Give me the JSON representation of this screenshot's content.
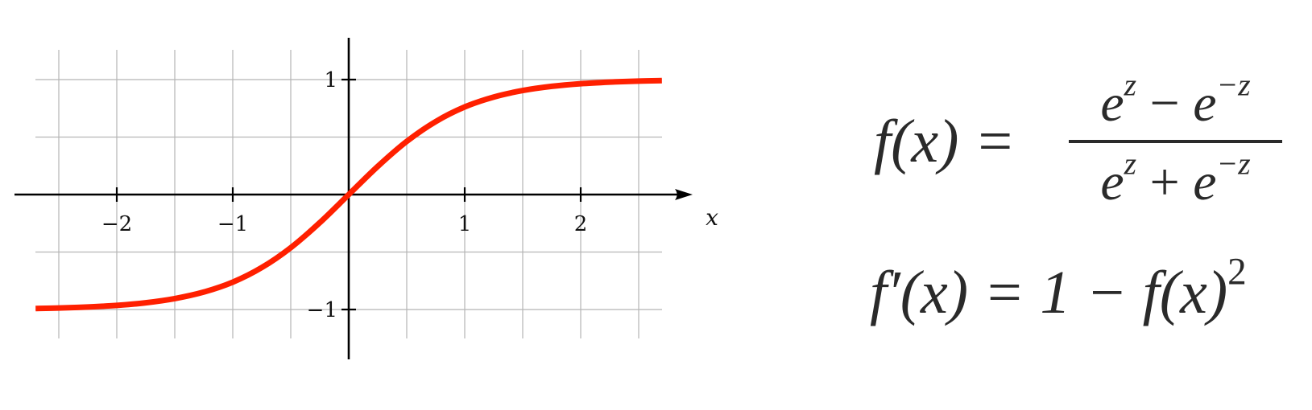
{
  "chart_data": {
    "type": "line",
    "title": "",
    "xlabel": "x",
    "ylabel": "",
    "xlim": [
      -2.87,
      2.73
    ],
    "ylim": [
      -1.42,
      1.38
    ],
    "grid": true,
    "grid_step": 0.5,
    "x_ticks": [
      {
        "value": -2,
        "label": "−2"
      },
      {
        "value": -1,
        "label": "−1"
      },
      {
        "value": 1,
        "label": "1"
      },
      {
        "value": 2,
        "label": "2"
      }
    ],
    "y_ticks": [
      {
        "value": 1,
        "label": "1"
      },
      {
        "value": -1,
        "label": "−1"
      }
    ],
    "series": [
      {
        "color": "#ff2000",
        "x": [
          -2.7,
          -2.5,
          -2.25,
          -2.0,
          -1.75,
          -1.5,
          -1.25,
          -1.0,
          -0.75,
          -0.5,
          -0.25,
          0.0,
          0.25,
          0.5,
          0.75,
          1.0,
          1.25,
          1.5,
          1.75,
          2.0,
          2.25,
          2.5,
          2.7
        ],
        "y": [
          -0.991,
          -0.987,
          -0.978,
          -0.964,
          -0.941,
          -0.905,
          -0.848,
          -0.762,
          -0.635,
          -0.462,
          -0.245,
          0.0,
          0.245,
          0.462,
          0.635,
          0.762,
          0.848,
          0.905,
          0.941,
          0.964,
          0.978,
          0.987,
          0.991
        ]
      }
    ]
  },
  "formulas": {
    "main": {
      "lhs": "f(x) =",
      "numerator": {
        "base1": "e",
        "exp1": "z",
        "op": "−",
        "base2": "e",
        "exp2": "−z"
      },
      "denominator": {
        "base1": "e",
        "exp1": "z",
        "op": "+",
        "base2": "e",
        "exp2": "−z"
      }
    },
    "derivative": {
      "lhs": "f′(x) = 1 −",
      "rhs": "f(x)",
      "power": "2"
    }
  }
}
